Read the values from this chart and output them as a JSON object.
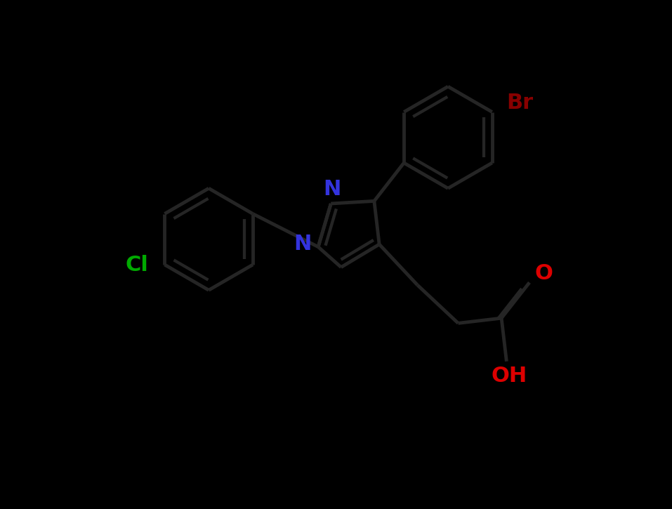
{
  "bg_color": "#000000",
  "bond_color": "#1a1a1a",
  "N_color": "#3333dd",
  "Cl_color": "#00aa00",
  "Br_color": "#880000",
  "O_color": "#dd0000",
  "OH_color": "#dd0000",
  "bond_lw": 3.5,
  "font_size": 22,
  "fig_w": 9.57,
  "fig_h": 7.25,
  "dpi": 100,
  "xlim": [
    -1.0,
    11.0
  ],
  "ylim": [
    -0.5,
    9.5
  ],
  "ring_r": 1.0,
  "dbo": 0.13,
  "bond_gap_color": "#000000"
}
